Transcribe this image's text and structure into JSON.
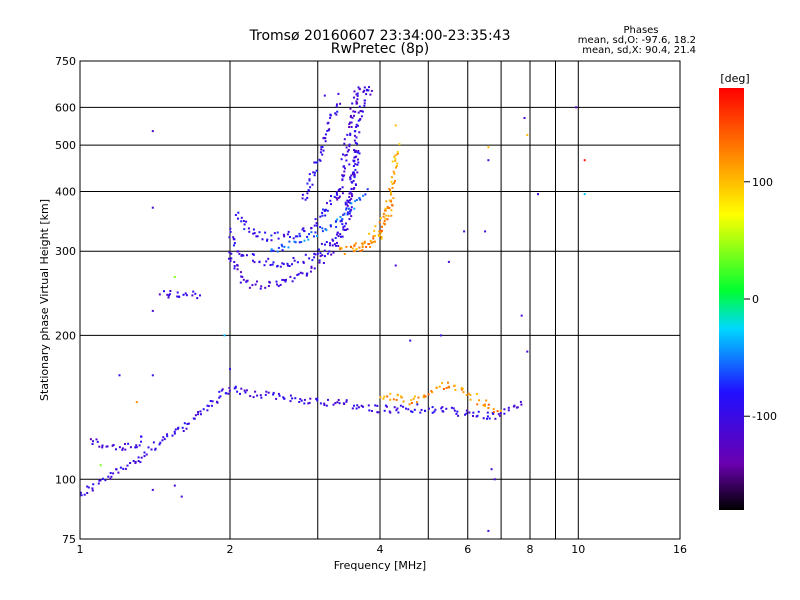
{
  "chart_data": {
    "type": "scatter",
    "title": "Tromsø 20160607 23:34:00-23:35:43",
    "subtitle": "RwPretec (8p)",
    "xlabel": "Frequency [MHz]",
    "ylabel": "Stationary phase Virtual Height [km]",
    "x_scale": "log",
    "y_scale": "log",
    "xlim": [
      1,
      16
    ],
    "ylim": [
      75,
      750
    ],
    "x_ticks": [
      1,
      2,
      4,
      6,
      8,
      10,
      16
    ],
    "x_tick_labels": [
      "1",
      "2",
      "4",
      "6",
      "8",
      "10",
      "16"
    ],
    "y_ticks": [
      75,
      100,
      200,
      300,
      400,
      500,
      600,
      750
    ],
    "y_tick_labels": [
      "75",
      "100",
      "200",
      "300",
      "400",
      "500",
      "600",
      "750"
    ],
    "x_minor_ticks": [
      3,
      5,
      7,
      9
    ],
    "grid": true,
    "phases_box": {
      "title": "Phases",
      "line_o": "mean, sd,O: -97.6, 18.2",
      "line_x": "mean, sd,X:  90.4, 21.4"
    },
    "colorbar": {
      "label": "[deg]",
      "range": [
        -180,
        180
      ],
      "ticks": [
        100,
        0,
        -100
      ],
      "tick_labels": [
        "100",
        "0",
        "-100"
      ]
    },
    "traces": [
      {
        "x": [
          1.0,
          1.05,
          1.12,
          1.2,
          1.3,
          1.38,
          1.45,
          1.5,
          1.55,
          1.62,
          1.7,
          1.78,
          1.85,
          1.9,
          1.95,
          2.0
        ],
        "y": [
          93,
          96,
          100,
          104,
          110,
          115,
          120,
          123,
          124,
          128,
          135,
          140,
          145,
          150,
          152,
          155
        ],
        "phase": -100
      },
      {
        "x": [
          1.05,
          1.12,
          1.2,
          1.28,
          1.35
        ],
        "y": [
          120,
          118,
          116,
          117,
          122
        ],
        "phase": -110
      },
      {
        "x": [
          2.0,
          2.1,
          2.3,
          2.6,
          2.9,
          3.2,
          3.5,
          3.8,
          4.0,
          4.3,
          4.6,
          5.0,
          5.4,
          5.8,
          6.3,
          6.8,
          7.3,
          7.8
        ],
        "y": [
          155,
          153,
          150,
          148,
          146,
          145,
          143,
          141,
          140,
          140,
          141,
          140,
          139,
          138,
          136,
          135,
          140,
          145
        ],
        "phase": -100
      },
      {
        "x": [
          4.0,
          4.3,
          4.6,
          5.0,
          5.4,
          5.8,
          6.2,
          6.6,
          7.0
        ],
        "y": [
          150,
          148,
          145,
          150,
          158,
          155,
          148,
          142,
          138
        ],
        "phase": 120
      },
      {
        "x": [
          1.45,
          1.55,
          1.65,
          1.75
        ],
        "y": [
          245,
          243,
          242,
          243
        ],
        "phase": -100
      },
      {
        "x": [
          2.0,
          2.05,
          2.1,
          2.2,
          2.35,
          2.5,
          2.7,
          2.9,
          3.1,
          3.3,
          3.45,
          3.55,
          3.6
        ],
        "y": [
          300,
          280,
          262,
          255,
          255,
          258,
          265,
          275,
          290,
          310,
          350,
          420,
          500
        ],
        "phase": -105
      },
      {
        "x": [
          2.0,
          2.05,
          2.15,
          2.3,
          2.5,
          2.7,
          2.9,
          3.1,
          3.3,
          3.45,
          3.55
        ],
        "y": [
          330,
          310,
          295,
          285,
          282,
          285,
          292,
          305,
          325,
          370,
          440
        ],
        "phase": -95
      },
      {
        "x": [
          2.05,
          2.2,
          2.4,
          2.7,
          3.0,
          3.3
        ],
        "y": [
          360,
          330,
          320,
          325,
          345,
          400
        ],
        "phase": -90
      },
      {
        "x": [
          3.3,
          3.35,
          3.4,
          3.45,
          3.5,
          3.55,
          3.6,
          3.65,
          3.7
        ],
        "y": [
          380,
          420,
          470,
          520,
          570,
          610,
          640,
          650,
          650
        ],
        "phase": -110
      },
      {
        "x": [
          3.5,
          3.55,
          3.6,
          3.65,
          3.7,
          3.75,
          3.8,
          3.85
        ],
        "y": [
          430,
          480,
          530,
          580,
          620,
          650,
          650,
          640
        ],
        "phase": -100
      },
      {
        "x": [
          3.5,
          3.7,
          3.85,
          3.95,
          4.05,
          4.15,
          4.22,
          4.28,
          4.32
        ],
        "y": [
          305,
          310,
          320,
          330,
          345,
          370,
          400,
          450,
          500
        ],
        "phase": 110
      },
      {
        "x": [
          3.3,
          3.5,
          3.7,
          3.9,
          4.05,
          4.15,
          4.25
        ],
        "y": [
          300,
          302,
          306,
          315,
          330,
          355,
          390
        ],
        "phase": 120
      },
      {
        "x": [
          2.8,
          2.9,
          3.0,
          3.1,
          3.2,
          3.3
        ],
        "y": [
          380,
          420,
          470,
          520,
          570,
          620
        ],
        "phase": -95
      },
      {
        "x": [
          2.4,
          2.6,
          2.8,
          3.0,
          3.2,
          3.4,
          3.6,
          3.8
        ],
        "y": [
          300,
          310,
          320,
          330,
          340,
          360,
          380,
          400
        ],
        "phase": -60
      }
    ],
    "points": [
      {
        "x": 1.4,
        "y": 535,
        "phase": -120
      },
      {
        "x": 1.4,
        "y": 370,
        "phase": -110
      },
      {
        "x": 1.4,
        "y": 225,
        "phase": -110
      },
      {
        "x": 1.55,
        "y": 265,
        "phase": 40
      },
      {
        "x": 1.2,
        "y": 165,
        "phase": -100
      },
      {
        "x": 1.4,
        "y": 165,
        "phase": -100
      },
      {
        "x": 1.3,
        "y": 145,
        "phase": 120
      },
      {
        "x": 1.4,
        "y": 95,
        "phase": -110
      },
      {
        "x": 1.6,
        "y": 92,
        "phase": -110
      },
      {
        "x": 1.55,
        "y": 97,
        "phase": -110
      },
      {
        "x": 1.1,
        "y": 107,
        "phase": 40
      },
      {
        "x": 1.95,
        "y": 200,
        "phase": -30
      },
      {
        "x": 2.0,
        "y": 170,
        "phase": -100
      },
      {
        "x": 3.1,
        "y": 635,
        "phase": -110
      },
      {
        "x": 3.3,
        "y": 640,
        "phase": -110
      },
      {
        "x": 4.3,
        "y": 550,
        "phase": 100
      },
      {
        "x": 4.3,
        "y": 280,
        "phase": -110
      },
      {
        "x": 4.6,
        "y": 195,
        "phase": -100
      },
      {
        "x": 5.3,
        "y": 200,
        "phase": -100
      },
      {
        "x": 5.5,
        "y": 285,
        "phase": -110
      },
      {
        "x": 5.9,
        "y": 330,
        "phase": -110
      },
      {
        "x": 6.6,
        "y": 495,
        "phase": 100
      },
      {
        "x": 6.6,
        "y": 465,
        "phase": -110
      },
      {
        "x": 6.5,
        "y": 330,
        "phase": -110
      },
      {
        "x": 7.8,
        "y": 570,
        "phase": -110
      },
      {
        "x": 7.9,
        "y": 525,
        "phase": 100
      },
      {
        "x": 8.3,
        "y": 395,
        "phase": -110
      },
      {
        "x": 9.9,
        "y": 600,
        "phase": -120
      },
      {
        "x": 10.3,
        "y": 465,
        "phase": 170
      },
      {
        "x": 10.3,
        "y": 395,
        "phase": -30
      },
      {
        "x": 7.7,
        "y": 220,
        "phase": -110
      },
      {
        "x": 7.9,
        "y": 185,
        "phase": -110
      },
      {
        "x": 6.7,
        "y": 105,
        "phase": -110
      },
      {
        "x": 6.8,
        "y": 100,
        "phase": -110
      },
      {
        "x": 6.6,
        "y": 78,
        "phase": -110
      }
    ]
  }
}
